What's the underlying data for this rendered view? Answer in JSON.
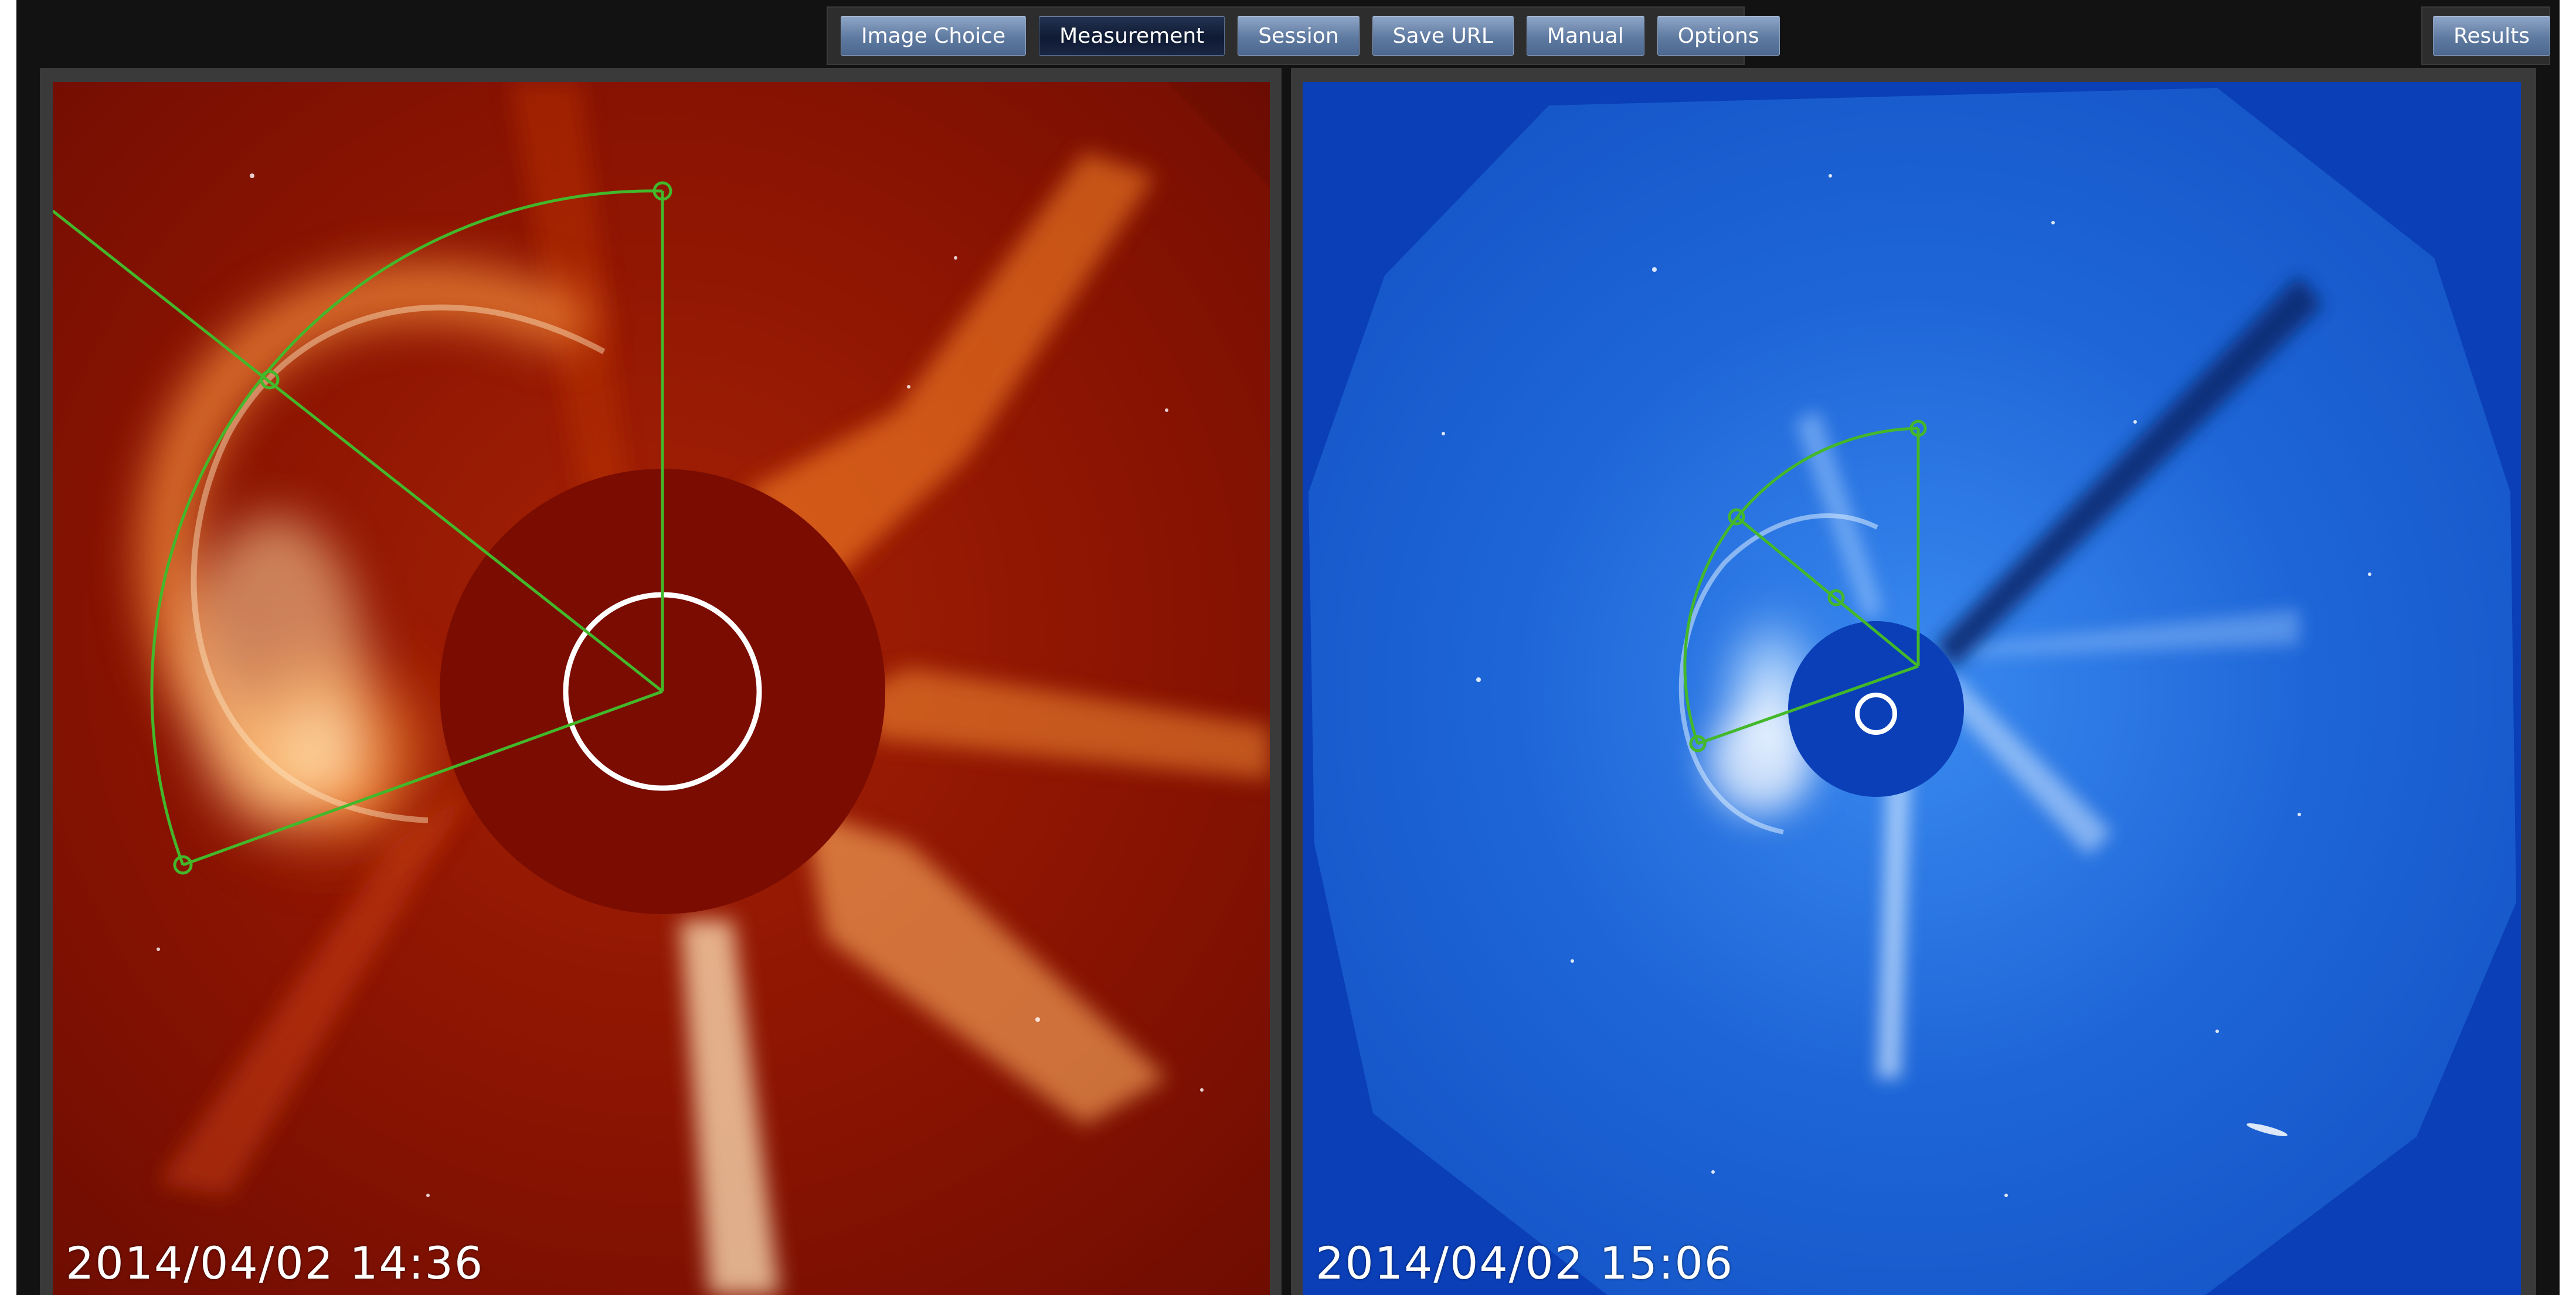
{
  "toolbar": {
    "buttons": [
      {
        "label": "Image Choice",
        "active": false
      },
      {
        "label": "Measurement",
        "active": true
      },
      {
        "label": "Session",
        "active": false
      },
      {
        "label": "Save URL",
        "active": false
      },
      {
        "label": "Manual",
        "active": false
      },
      {
        "label": "Options",
        "active": false
      }
    ],
    "results_label": "Results"
  },
  "viewers": {
    "left": {
      "timestamp": "2014/04/02  14:36",
      "colormap": "red",
      "accent_color": "#c22a06"
    },
    "right": {
      "timestamp": "2014/04/02  15:06",
      "colormap": "blue",
      "accent_color": "#1e6fe0"
    }
  },
  "overlay": {
    "line_color": "#43b82a",
    "sun_circle_color": "#ffffff"
  }
}
